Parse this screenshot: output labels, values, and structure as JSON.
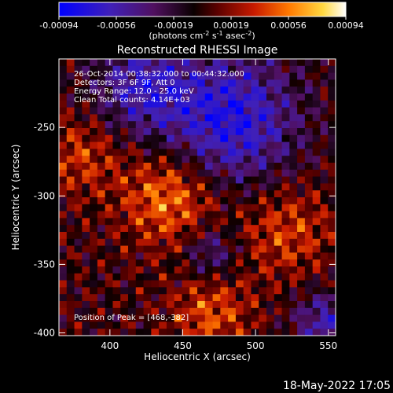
{
  "chart_data": {
    "type": "heatmap",
    "title": "Reconstructed RHESSI Image",
    "xlabel": "Heliocentric X (arcsec)",
    "ylabel": "Heliocentric Y (arcsec)",
    "xlim": [
      365,
      555
    ],
    "ylim": [
      -402,
      -200
    ],
    "x_ticks": [
      400,
      450,
      500,
      550
    ],
    "y_ticks": [
      -250,
      -300,
      -350,
      -400
    ],
    "colorbar": {
      "ticks": [
        "-0.00094",
        "-0.00056",
        "-0.00019",
        "0.00019",
        "0.00056",
        "0.00094"
      ],
      "label_prefix": "(photons cm",
      "label_exp1": "-2",
      "label_mid": " s",
      "label_exp2": "-1",
      "label_mid2": " asec",
      "label_exp3": "-2",
      "label_suffix": ")",
      "range": [
        -0.00094,
        0.00094
      ]
    },
    "annotations": {
      "time": "26-Oct-2014 00:38:32.000 to 00:44:32.000",
      "detectors": "Detectors: 3F 6F 9F, Att 0",
      "energy": "Energy Range: 12.0 - 25.0 keV",
      "clean": "Clean     Total counts: 4.14E+03",
      "peak": "Position of Peak = [468,-382]"
    },
    "peak_position": [
      468,
      -382
    ],
    "grid_cells": [
      36,
      40
    ]
  },
  "footer": {
    "timestamp": "18-May-2022 17:05"
  }
}
